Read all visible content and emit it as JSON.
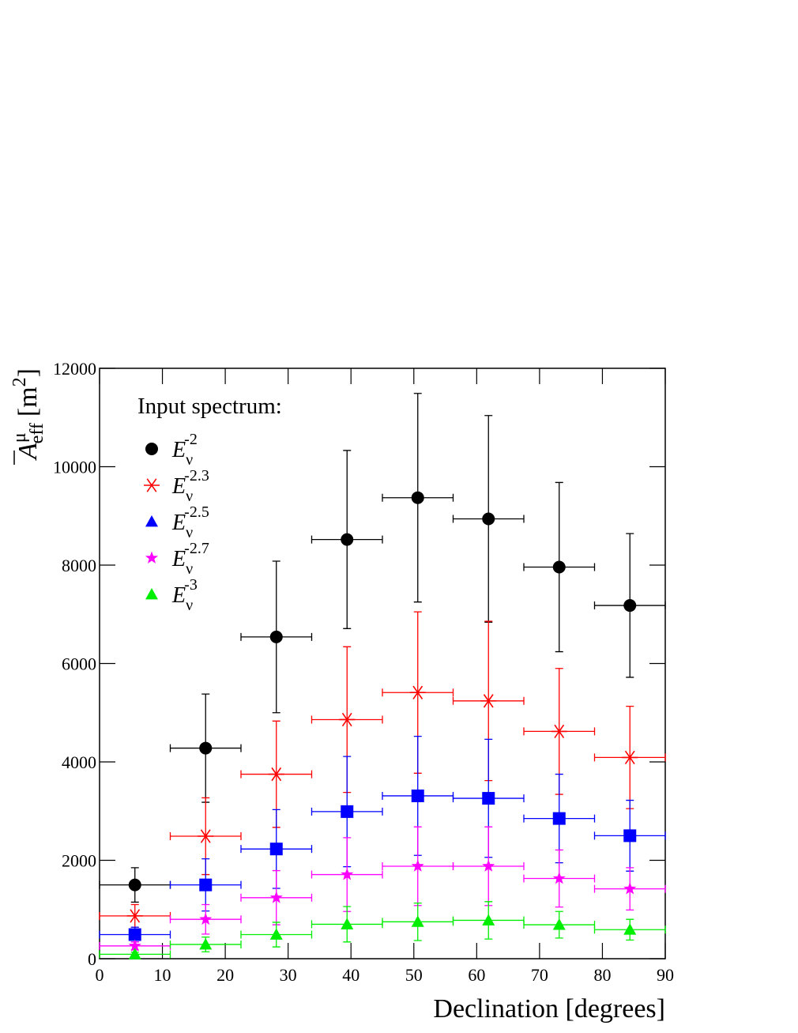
{
  "chart_data": {
    "type": "errorbar",
    "xlabel": "Declination [degrees]",
    "ylabel_parts": [
      "A",
      "μ",
      "eff",
      "[m",
      "2",
      "]"
    ],
    "legend_title": "Input spectrum:",
    "x": [
      5.625,
      16.875,
      28.125,
      39.375,
      50.625,
      61.875,
      73.125,
      84.375
    ],
    "xerr": 5.625,
    "xlim": [
      0,
      90
    ],
    "xticks": [
      0,
      10,
      20,
      30,
      40,
      50,
      60,
      70,
      80,
      90
    ],
    "ylim": [
      0,
      12000
    ],
    "yticks": [
      0,
      2000,
      4000,
      6000,
      8000,
      10000,
      12000
    ],
    "series": [
      {
        "name": "E",
        "name_sub": "ν",
        "name_sup": "-2",
        "color": "#000000",
        "marker": "circle",
        "values": [
          1500,
          4280,
          6540,
          8520,
          9370,
          8940,
          7960,
          7180
        ],
        "errors": [
          350,
          1100,
          1540,
          1810,
          2120,
          2100,
          1720,
          1460
        ]
      },
      {
        "name": "E",
        "name_sub": "ν",
        "name_sup": "-2.3",
        "color": "#ff0000",
        "marker": "asterisk",
        "values": [
          870,
          2490,
          3750,
          4860,
          5410,
          5240,
          4620,
          4090
        ],
        "errors": [
          230,
          780,
          1080,
          1480,
          1640,
          1620,
          1280,
          1040
        ]
      },
      {
        "name": "E",
        "name_sub": "ν",
        "name_sup": "-2.5",
        "color": "#0000ff",
        "marker": "square",
        "legend_marker": "triangle",
        "values": [
          490,
          1500,
          2230,
          2990,
          3310,
          3260,
          2850,
          2500
        ],
        "errors": [
          150,
          530,
          800,
          1120,
          1210,
          1200,
          900,
          720
        ]
      },
      {
        "name": "E",
        "name_sub": "ν",
        "name_sup": "-2.7",
        "color": "#ff00ff",
        "marker": "star",
        "values": [
          260,
          800,
          1240,
          1710,
          1880,
          1880,
          1630,
          1420
        ],
        "errors": [
          80,
          300,
          550,
          750,
          800,
          800,
          580,
          430
        ]
      },
      {
        "name": "E",
        "name_sub": "ν",
        "name_sup": "-3",
        "color": "#00ee00",
        "marker": "triangle",
        "values": [
          90,
          290,
          490,
          700,
          750,
          780,
          690,
          590
        ],
        "errors": [
          40,
          150,
          250,
          360,
          380,
          380,
          270,
          210
        ]
      }
    ]
  }
}
